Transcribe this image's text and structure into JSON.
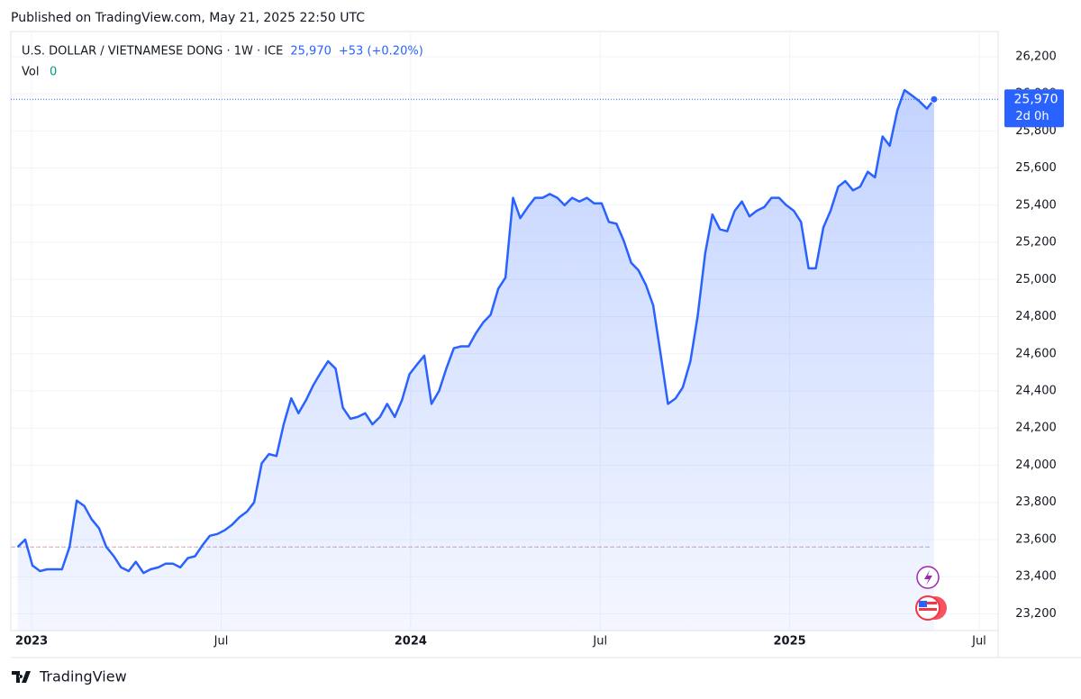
{
  "publish_note": "Published on TradingView.com, May 21, 2025 22:50 UTC",
  "brand": "TradingView",
  "chart_data": {
    "type": "area",
    "header": {
      "symbol": "U.S. DOLLAR / VIETNAMESE DONG · 1W · ICE",
      "price": "25,970",
      "change": "+53 (+0.20%)",
      "volume_name": "Vol",
      "volume": "0"
    },
    "price_tag": {
      "price": "25,970",
      "countdown": "2d 0h"
    },
    "x": [
      2022.963,
      2022.983,
      2023.002,
      2023.022,
      2023.041,
      2023.061,
      2023.08,
      2023.1,
      2023.119,
      2023.139,
      2023.158,
      2023.178,
      2023.197,
      2023.217,
      2023.236,
      2023.256,
      2023.275,
      2023.295,
      2023.314,
      2023.334,
      2023.353,
      2023.373,
      2023.392,
      2023.412,
      2023.431,
      2023.451,
      2023.47,
      2023.49,
      2023.509,
      2023.529,
      2023.548,
      2023.568,
      2023.587,
      2023.607,
      2023.626,
      2023.646,
      2023.665,
      2023.685,
      2023.704,
      2023.724,
      2023.743,
      2023.763,
      2023.782,
      2023.802,
      2023.821,
      2023.841,
      2023.86,
      2023.88,
      2023.899,
      2023.919,
      2023.938,
      2023.958,
      2023.977,
      2023.997,
      2024.016,
      2024.036,
      2024.055,
      2024.075,
      2024.094,
      2024.114,
      2024.133,
      2024.153,
      2024.172,
      2024.192,
      2024.211,
      2024.231,
      2024.25,
      2024.27,
      2024.289,
      2024.309,
      2024.328,
      2024.348,
      2024.367,
      2024.387,
      2024.406,
      2024.426,
      2024.445,
      2024.465,
      2024.484,
      2024.504,
      2024.523,
      2024.543,
      2024.562,
      2024.582,
      2024.601,
      2024.621,
      2024.64,
      2024.66,
      2024.679,
      2024.699,
      2024.718,
      2024.738,
      2024.757,
      2024.777,
      2024.796,
      2024.816,
      2024.835,
      2024.855,
      2024.874,
      2024.894,
      2024.913,
      2024.933,
      2024.952,
      2024.972,
      2024.991,
      2025.011,
      2025.03,
      2025.05,
      2025.069,
      2025.089,
      2025.108,
      2025.128,
      2025.147,
      2025.167,
      2025.186,
      2025.206,
      2025.225,
      2025.245,
      2025.264,
      2025.284,
      2025.303,
      2025.323,
      2025.342,
      2025.362,
      2025.381
    ],
    "series": [
      {
        "color": "#2962ff",
        "values": [
          23560,
          23600,
          23460,
          23430,
          23440,
          23440,
          23440,
          23560,
          23810,
          23780,
          23710,
          23660,
          23560,
          23510,
          23450,
          23430,
          23480,
          23420,
          23440,
          23450,
          23470,
          23470,
          23450,
          23500,
          23510,
          23570,
          23620,
          23630,
          23650,
          23680,
          23720,
          23750,
          23800,
          24010,
          24060,
          24050,
          24220,
          24360,
          24280,
          24350,
          24430,
          24500,
          24560,
          24520,
          24310,
          24250,
          24260,
          24280,
          24220,
          24260,
          24330,
          24260,
          24350,
          24490,
          24540,
          24590,
          24330,
          24400,
          24520,
          24630,
          24640,
          24640,
          24710,
          24770,
          24810,
          24950,
          25010,
          25440,
          25330,
          25390,
          25440,
          25440,
          25460,
          25440,
          25400,
          25440,
          25420,
          25440,
          25410,
          25410,
          25310,
          25300,
          25210,
          25090,
          25050,
          24970,
          24860,
          24590,
          24330,
          24360,
          24420,
          24560,
          24800,
          25140,
          25350,
          25270,
          25260,
          25370,
          25420,
          25340,
          25370,
          25390,
          25440,
          25440,
          25400,
          25370,
          25310,
          25060,
          25060,
          25280,
          25370,
          25500,
          25530,
          25480,
          25500,
          25580,
          25550,
          25770,
          25720,
          25910,
          26020,
          25990,
          25960,
          25920,
          25970
        ]
      }
    ],
    "reference_line": 23560,
    "xlim": [
      2022.945,
      2025.55
    ],
    "xticks": [
      {
        "value": 2023,
        "label": "2023"
      },
      {
        "value": 2023.5,
        "label": "Jul"
      },
      {
        "value": 2024,
        "label": "2024"
      },
      {
        "value": 2024.5,
        "label": "Jul"
      },
      {
        "value": 2025,
        "label": "2025"
      },
      {
        "value": 2025.5,
        "label": "Jul"
      }
    ],
    "ylim": [
      23110,
      26335
    ],
    "yticks": [
      {
        "value": 23200,
        "label": "23,200"
      },
      {
        "value": 23400,
        "label": "23,400"
      },
      {
        "value": 23600,
        "label": "23,600"
      },
      {
        "value": 23800,
        "label": "23,800"
      },
      {
        "value": 24000,
        "label": "24,000"
      },
      {
        "value": 24200,
        "label": "24,200"
      },
      {
        "value": 24400,
        "label": "24,400"
      },
      {
        "value": 24600,
        "label": "24,600"
      },
      {
        "value": 24800,
        "label": "24,800"
      },
      {
        "value": 25000,
        "label": "25,000"
      },
      {
        "value": 25200,
        "label": "25,200"
      },
      {
        "value": 25400,
        "label": "25,400"
      },
      {
        "value": 25600,
        "label": "25,600"
      },
      {
        "value": 25800,
        "label": "25,800"
      },
      {
        "value": 26000,
        "label": "26,000"
      },
      {
        "value": 26200,
        "label": "26,200"
      }
    ],
    "grid": true
  }
}
